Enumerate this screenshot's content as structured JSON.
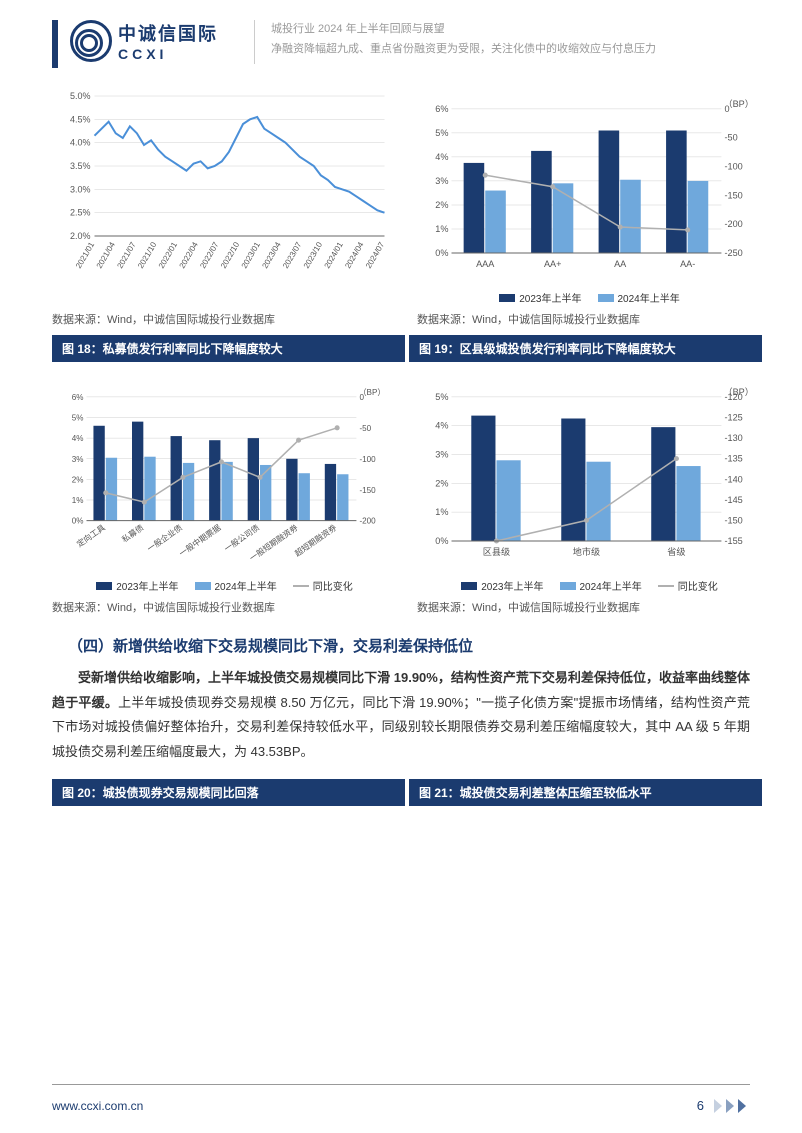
{
  "header": {
    "logo_cn": "中诚信国际",
    "logo_en": "CCXI",
    "title1": "城投行业 2024 年上半年回顾与展望",
    "title2": "净融资降幅超九成、重点省份融资更为受限，关注化债中的收缩效应与付息压力"
  },
  "chart16": {
    "type": "line",
    "ylim": [
      2.0,
      5.0
    ],
    "ytick_step": 0.5,
    "y_suffix": "%",
    "xticks": [
      "2021/01",
      "2021/04",
      "2021/07",
      "2021/10",
      "2022/01",
      "2022/04",
      "2022/07",
      "2022/10",
      "2023/01",
      "2023/04",
      "2023/07",
      "2023/10",
      "2024/01",
      "2024/04",
      "2024/07"
    ],
    "series": [
      {
        "color": "#4a8fd8",
        "width": 2,
        "values": [
          4.15,
          4.3,
          4.45,
          4.2,
          4.1,
          4.35,
          4.2,
          3.95,
          4.05,
          3.85,
          3.7,
          3.6,
          3.5,
          3.4,
          3.55,
          3.6,
          3.45,
          3.5,
          3.6,
          3.8,
          4.1,
          4.4,
          4.5,
          4.55,
          4.3,
          4.2,
          4.1,
          4.0,
          3.85,
          3.7,
          3.6,
          3.5,
          3.3,
          3.2,
          3.05,
          3.0,
          2.95,
          2.85,
          2.75,
          2.65,
          2.55,
          2.5
        ]
      }
    ],
    "grid_color": "#d0d0d0",
    "axis_color": "#666",
    "label_fontsize": 9
  },
  "chart17": {
    "type": "bar_line",
    "categories": [
      "AAA",
      "AA+",
      "AA",
      "AA-"
    ],
    "y1": {
      "lim": [
        0,
        6
      ],
      "step": 1,
      "suffix": "%"
    },
    "y2": {
      "lim": [
        -250,
        0
      ],
      "step": -50,
      "label": "（BP）"
    },
    "bars": [
      {
        "name": "2023年上半年",
        "color": "#1b3b6f",
        "values": [
          3.75,
          4.25,
          5.1,
          5.1
        ]
      },
      {
        "name": "2024年上半年",
        "color": "#6fa8dc",
        "values": [
          2.6,
          2.9,
          3.05,
          3.0
        ]
      }
    ],
    "line": {
      "color": "#b0b0b0",
      "values": [
        -115,
        -135,
        -205,
        -210
      ]
    },
    "bar_width": 0.32,
    "grid_color": "#d0d0d0",
    "label_fontsize": 9
  },
  "source": "数据来源：Wind，中诚信国际城投行业数据库",
  "caption18": "图 18：私募债发行利率同比下降幅度较大",
  "caption19": "图 19：区县级城投债发行利率同比下降幅度较大",
  "chart18": {
    "type": "bar_line",
    "categories": [
      "定向工具",
      "私募债",
      "一般企业债",
      "一般中期票据",
      "一般公司债",
      "一般短期融资券",
      "超短期融资券"
    ],
    "y1": {
      "lim": [
        0,
        6
      ],
      "step": 1,
      "suffix": "%"
    },
    "y2": {
      "lim": [
        -200,
        0
      ],
      "step": -50,
      "label": "（BP）"
    },
    "bars": [
      {
        "name": "2023年上半年",
        "color": "#1b3b6f",
        "values": [
          4.6,
          4.8,
          4.1,
          3.9,
          4.0,
          3.0,
          2.75
        ]
      },
      {
        "name": "2024年上半年",
        "color": "#6fa8dc",
        "values": [
          3.05,
          3.1,
          2.8,
          2.85,
          2.7,
          2.3,
          2.25
        ]
      }
    ],
    "line": {
      "name": "同比变化",
      "color": "#b0b0b0",
      "values": [
        -155,
        -170,
        -130,
        -105,
        -130,
        -70,
        -50
      ]
    },
    "bar_width": 0.32,
    "grid_color": "#d0d0d0",
    "label_fontsize": 8
  },
  "chart19": {
    "type": "bar_line",
    "categories": [
      "区县级",
      "地市级",
      "省级"
    ],
    "y1": {
      "lim": [
        0,
        5
      ],
      "step": 1,
      "suffix": "%"
    },
    "y2": {
      "lim": [
        -155,
        -120
      ],
      "step": -5,
      "label": "（BP）"
    },
    "bars": [
      {
        "name": "2023年上半年",
        "color": "#1b3b6f",
        "values": [
          4.35,
          4.25,
          3.95
        ]
      },
      {
        "name": "2024年上半年",
        "color": "#6fa8dc",
        "values": [
          2.8,
          2.75,
          2.6
        ]
      }
    ],
    "line": {
      "name": "同比变化",
      "color": "#b0b0b0",
      "values": [
        -155,
        -150,
        -135
      ]
    },
    "bar_width": 0.28,
    "grid_color": "#d0d0d0",
    "label_fontsize": 9
  },
  "section4": {
    "title": "（四）新增供给收缩下交易规模同比下滑，交易利差保持低位",
    "para": [
      "受新增供给收缩影响，上半年城投债交易规模同比下滑 19.90%，结构性资产荒下交易利差保持低位，收益率曲线整体趋于平缓。",
      "上半年城投债现券交易规模 8.50 万亿元，同比下滑 19.90%；\"一揽子化债方案\"提振市场情绪，结构性资产荒下市场对城投债偏好整体抬升，交易利差保持较低水平，同级别较长期限债券交易利差压缩幅度较大，其中 AA 级 5 年期城投债交易利差压缩幅度最大，为 43.53BP。"
    ]
  },
  "caption20": "图 20：城投债现券交易规模同比回落",
  "caption21": "图 21：城投债交易利差整体压缩至较低水平",
  "footer": {
    "url": "www.ccxi.com.cn",
    "page": "6"
  }
}
